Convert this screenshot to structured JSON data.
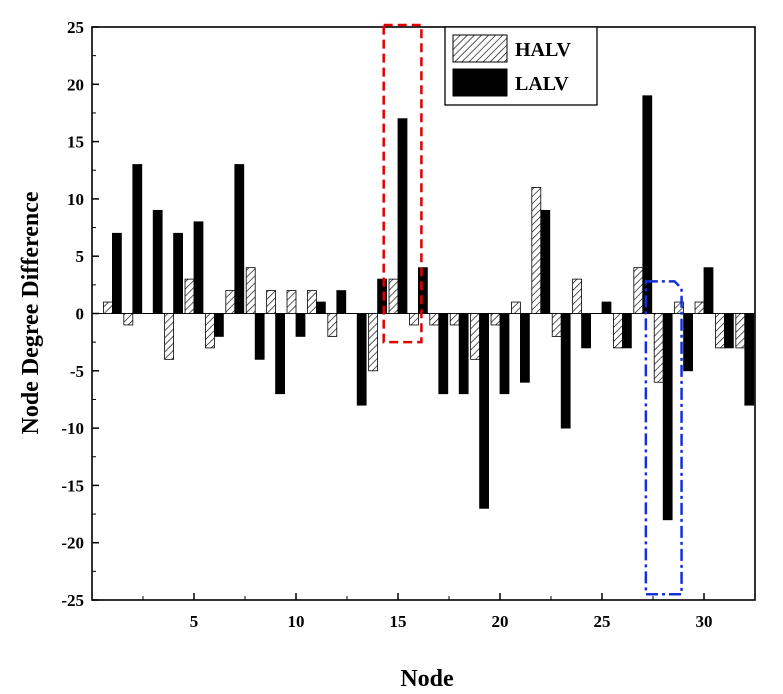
{
  "chart_data": {
    "type": "bar",
    "xlabel": "Node",
    "ylabel": "Node Degree Difference",
    "xlim": [
      0,
      32.5
    ],
    "ylim": [
      -25,
      25
    ],
    "x_ticks": [
      5,
      10,
      15,
      20,
      25,
      30
    ],
    "y_ticks": [
      -25,
      -20,
      -15,
      -10,
      -5,
      0,
      5,
      10,
      15,
      20,
      25
    ],
    "categories": [
      1,
      2,
      3,
      4,
      5,
      6,
      7,
      8,
      9,
      10,
      11,
      12,
      13,
      14,
      15,
      16,
      17,
      18,
      19,
      20,
      21,
      22,
      23,
      24,
      25,
      26,
      27,
      28,
      29,
      30,
      31,
      32
    ],
    "series": [
      {
        "name": "HALV",
        "pattern": "hatched",
        "values": [
          1,
          -1,
          0,
          -4,
          3,
          -3,
          2,
          4,
          2,
          2,
          2,
          -2,
          0,
          -5,
          3,
          -1,
          -1,
          -1,
          -4,
          -1,
          1,
          11,
          -2,
          3,
          0,
          -3,
          4,
          -6,
          1,
          1,
          -3,
          -3
        ]
      },
      {
        "name": "LALV",
        "pattern": "solid",
        "values": [
          7,
          13,
          9,
          7,
          8,
          -2,
          13,
          -4,
          -7,
          -2,
          1,
          2,
          -8,
          3,
          17,
          4,
          -7,
          -7,
          -17,
          -7,
          -6,
          9,
          -10,
          -3,
          1,
          -3,
          19,
          -18,
          -5,
          4,
          -3,
          -8
        ]
      }
    ],
    "legend_position": "top-center",
    "highlights": [
      {
        "node": 15,
        "color": "#e00000",
        "style": "dashed"
      },
      {
        "node": 28,
        "color": "#1530d8",
        "style": "dash-dot"
      }
    ]
  }
}
